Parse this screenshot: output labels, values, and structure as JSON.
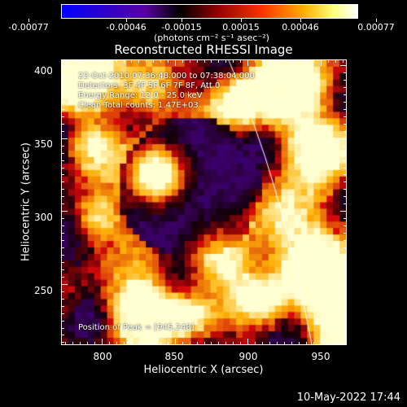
{
  "colorbar": {
    "tick_labels": [
      "-0.00077",
      "-0.00046",
      "-0.00015",
      "0.00015",
      "0.00046",
      "0.00077"
    ],
    "units_label": "(photons cm⁻² s⁻¹ asec⁻²)",
    "colors": [
      "#0000ff",
      "#000000",
      "#ff3300",
      "#ffff80",
      "#ffffff"
    ]
  },
  "plot": {
    "title": "Reconstructed RHESSI Image",
    "info_lines": [
      "22-Oct-2010 07:36:48.000 to 07:38:04.000",
      "Detectors: 3F 4F 5F 6F 7F 8F, Att 0",
      "Energy Range: 12.0 - 25.0 keV",
      "Clean    Total counts: 1.47E+03"
    ],
    "peak_text": "Position of Peak = [945,248]",
    "xlabel": "Heliocentric X (arcsec)",
    "ylabel": "Heliocentric Y (arcsec)",
    "x_ticks": [
      "800",
      "850",
      "900",
      "950"
    ],
    "y_ticks": [
      "250",
      "300",
      "350",
      "400"
    ],
    "xlim": [
      772,
      968
    ],
    "ylim": [
      208,
      404
    ]
  },
  "footer": {
    "date": "10-May-2022 17:44"
  }
}
